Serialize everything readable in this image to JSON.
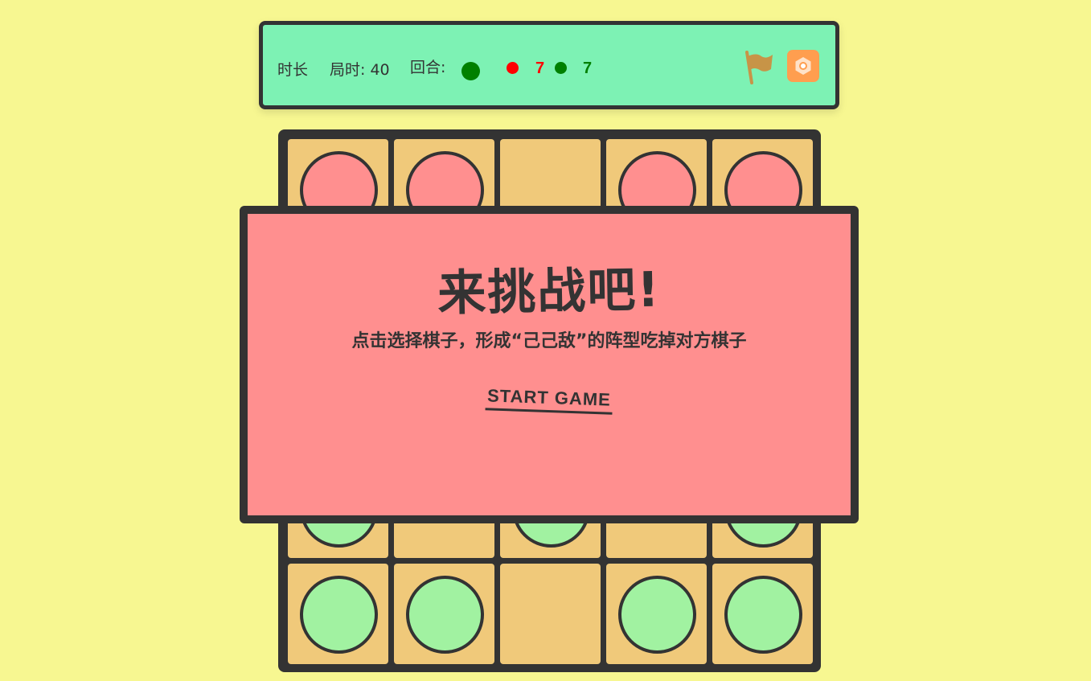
{
  "header": {
    "duration_label": "时长",
    "round_time_label": "局时: 40",
    "turn_label": "回合:",
    "turn_color": "#008000",
    "red_color": "#ff0000",
    "green_color": "#008000",
    "red_score": "7",
    "green_score": "7",
    "flag_icon": "flag-icon",
    "settings_icon": "settings-icon"
  },
  "board": {
    "cell_color": "#f0c97a",
    "red_piece_color": "#ff8f8f",
    "green_piece_color": "#a1f2a1",
    "grid": [
      [
        "red",
        "red",
        "empty",
        "red",
        "red"
      ],
      [
        "unknown",
        "unknown",
        "unknown",
        "unknown",
        "unknown"
      ],
      [
        "unknown",
        "unknown",
        "unknown",
        "unknown",
        "unknown"
      ],
      [
        "green",
        "empty",
        "green",
        "empty",
        "green"
      ],
      [
        "green",
        "green",
        "empty",
        "green",
        "green"
      ]
    ]
  },
  "overlay": {
    "title": "来挑战吧!",
    "subtitle": "点击选择棋子，形成“己己敌”的阵型吃掉对方棋子",
    "start_label": "START GAME"
  }
}
